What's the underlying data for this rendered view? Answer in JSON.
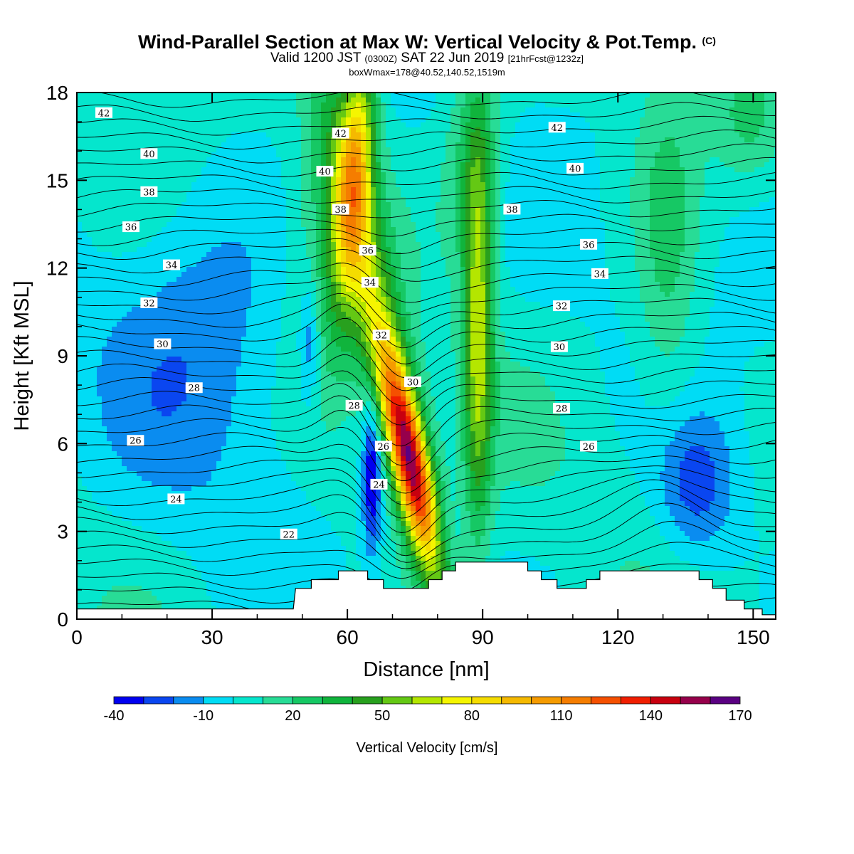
{
  "title": {
    "main": "Wind-Parallel Section at Max W: Vertical Velocity & Pot.Temp.",
    "copyright": "(C)",
    "valid_prefix": "Valid 1200 JST",
    "valid_utc": "(0300Z)",
    "valid_date": "SAT 22 Jun 2019",
    "forecast": "[21hrFcst@1232z]",
    "box_info": "boxWmax=178@40.52,140.52,1519m"
  },
  "chart_data": {
    "type": "heatmap",
    "xlabel": "Distance [nm]",
    "ylabel": "Height [Kft MSL]",
    "xlim": [
      0,
      155
    ],
    "ylim": [
      0,
      18
    ],
    "x_ticks": [
      "0",
      "30",
      "60",
      "90",
      "120",
      "150"
    ],
    "y_ticks": [
      "0",
      "3",
      "6",
      "9",
      "12",
      "15",
      "18"
    ],
    "colorbar": {
      "label": "Vertical Velocity [cm/s]",
      "tick_labels": [
        "-40",
        "-10",
        "20",
        "50",
        "80",
        "110",
        "140",
        "170"
      ],
      "levels": [
        -40,
        -30,
        -20,
        -10,
        0,
        10,
        20,
        30,
        40,
        50,
        60,
        70,
        80,
        90,
        100,
        110,
        120,
        130,
        140,
        150,
        160,
        170
      ],
      "colors": [
        "#0000f0",
        "#0a46f0",
        "#0a8cf0",
        "#00dcf5",
        "#05e6cd",
        "#28dc96",
        "#16c864",
        "#10b43c",
        "#28a01e",
        "#64c814",
        "#b4e600",
        "#f5f500",
        "#f5dc00",
        "#f5b900",
        "#f59b00",
        "#f57d00",
        "#f55000",
        "#f01e00",
        "#c8000f",
        "#96004b",
        "#5a0082"
      ]
    },
    "terrain_kft": [
      [
        0,
        0.35
      ],
      [
        48,
        0.35
      ],
      [
        48.5,
        1.05
      ],
      [
        52,
        1.05
      ],
      [
        52,
        1.35
      ],
      [
        58,
        1.35
      ],
      [
        58,
        1.65
      ],
      [
        62,
        1.65
      ],
      [
        64.5,
        1.65
      ],
      [
        64.5,
        1.35
      ],
      [
        68,
        1.35
      ],
      [
        68,
        1.05
      ],
      [
        78,
        1.05
      ],
      [
        78,
        1.35
      ],
      [
        81,
        1.35
      ],
      [
        81,
        1.65
      ],
      [
        84,
        1.65
      ],
      [
        84,
        1.95
      ],
      [
        100,
        1.95
      ],
      [
        100,
        1.65
      ],
      [
        103,
        1.65
      ],
      [
        103,
        1.35
      ],
      [
        106.5,
        1.35
      ],
      [
        106.5,
        1.05
      ],
      [
        113,
        1.05
      ],
      [
        113,
        1.35
      ],
      [
        116,
        1.35
      ],
      [
        116,
        1.65
      ],
      [
        138,
        1.65
      ],
      [
        138,
        1.35
      ],
      [
        141,
        1.35
      ],
      [
        141,
        1.05
      ],
      [
        144,
        1.05
      ],
      [
        144,
        0.65
      ],
      [
        148,
        0.65
      ],
      [
        148,
        0.35
      ],
      [
        152,
        0.35
      ],
      [
        152,
        0.15
      ],
      [
        155,
        0.15
      ]
    ],
    "updraft_cores": [
      {
        "x": 74.5,
        "y": 5.5,
        "w": 170
      },
      {
        "x": 61.5,
        "y": 15.5,
        "w": 78
      },
      {
        "x": 89,
        "y": 10,
        "w": 62
      }
    ],
    "downdraft_cores": [
      {
        "x": 65.5,
        "y": 5.0,
        "w": -40
      },
      {
        "x": 51.5,
        "y": 9.5,
        "w": -25
      },
      {
        "x": 137,
        "y": 4.5,
        "w": -30
      }
    ],
    "theta_contour_labels": [
      {
        "text": "42",
        "x": 6,
        "y": 17.3
      },
      {
        "text": "40",
        "x": 16,
        "y": 15.9
      },
      {
        "text": "38",
        "x": 16,
        "y": 14.6
      },
      {
        "text": "36",
        "x": 12,
        "y": 13.4
      },
      {
        "text": "34",
        "x": 21,
        "y": 12.1
      },
      {
        "text": "32",
        "x": 16,
        "y": 10.8
      },
      {
        "text": "30",
        "x": 19,
        "y": 9.4
      },
      {
        "text": "28",
        "x": 26,
        "y": 7.9
      },
      {
        "text": "26",
        "x": 13,
        "y": 6.1
      },
      {
        "text": "24",
        "x": 22,
        "y": 4.1
      },
      {
        "text": "22",
        "x": 47,
        "y": 2.9
      },
      {
        "text": "42",
        "x": 58.5,
        "y": 16.6
      },
      {
        "text": "40",
        "x": 55,
        "y": 15.3
      },
      {
        "text": "38",
        "x": 58.5,
        "y": 14.0
      },
      {
        "text": "36",
        "x": 64.5,
        "y": 12.6
      },
      {
        "text": "34",
        "x": 65,
        "y": 11.5
      },
      {
        "text": "32",
        "x": 67.5,
        "y": 9.7
      },
      {
        "text": "30",
        "x": 74.5,
        "y": 8.1
      },
      {
        "text": "28",
        "x": 61.5,
        "y": 7.3
      },
      {
        "text": "26",
        "x": 68,
        "y": 5.9
      },
      {
        "text": "24",
        "x": 67,
        "y": 4.6
      },
      {
        "text": "42",
        "x": 106.5,
        "y": 16.8
      },
      {
        "text": "40",
        "x": 110.5,
        "y": 15.4
      },
      {
        "text": "38",
        "x": 96.5,
        "y": 14.0
      },
      {
        "text": "36",
        "x": 113.5,
        "y": 12.8
      },
      {
        "text": "34",
        "x": 116,
        "y": 11.8
      },
      {
        "text": "32",
        "x": 107.5,
        "y": 10.7
      },
      {
        "text": "30",
        "x": 107,
        "y": 9.3
      },
      {
        "text": "28",
        "x": 107.5,
        "y": 7.2
      },
      {
        "text": "26",
        "x": 113.5,
        "y": 5.9
      }
    ]
  }
}
